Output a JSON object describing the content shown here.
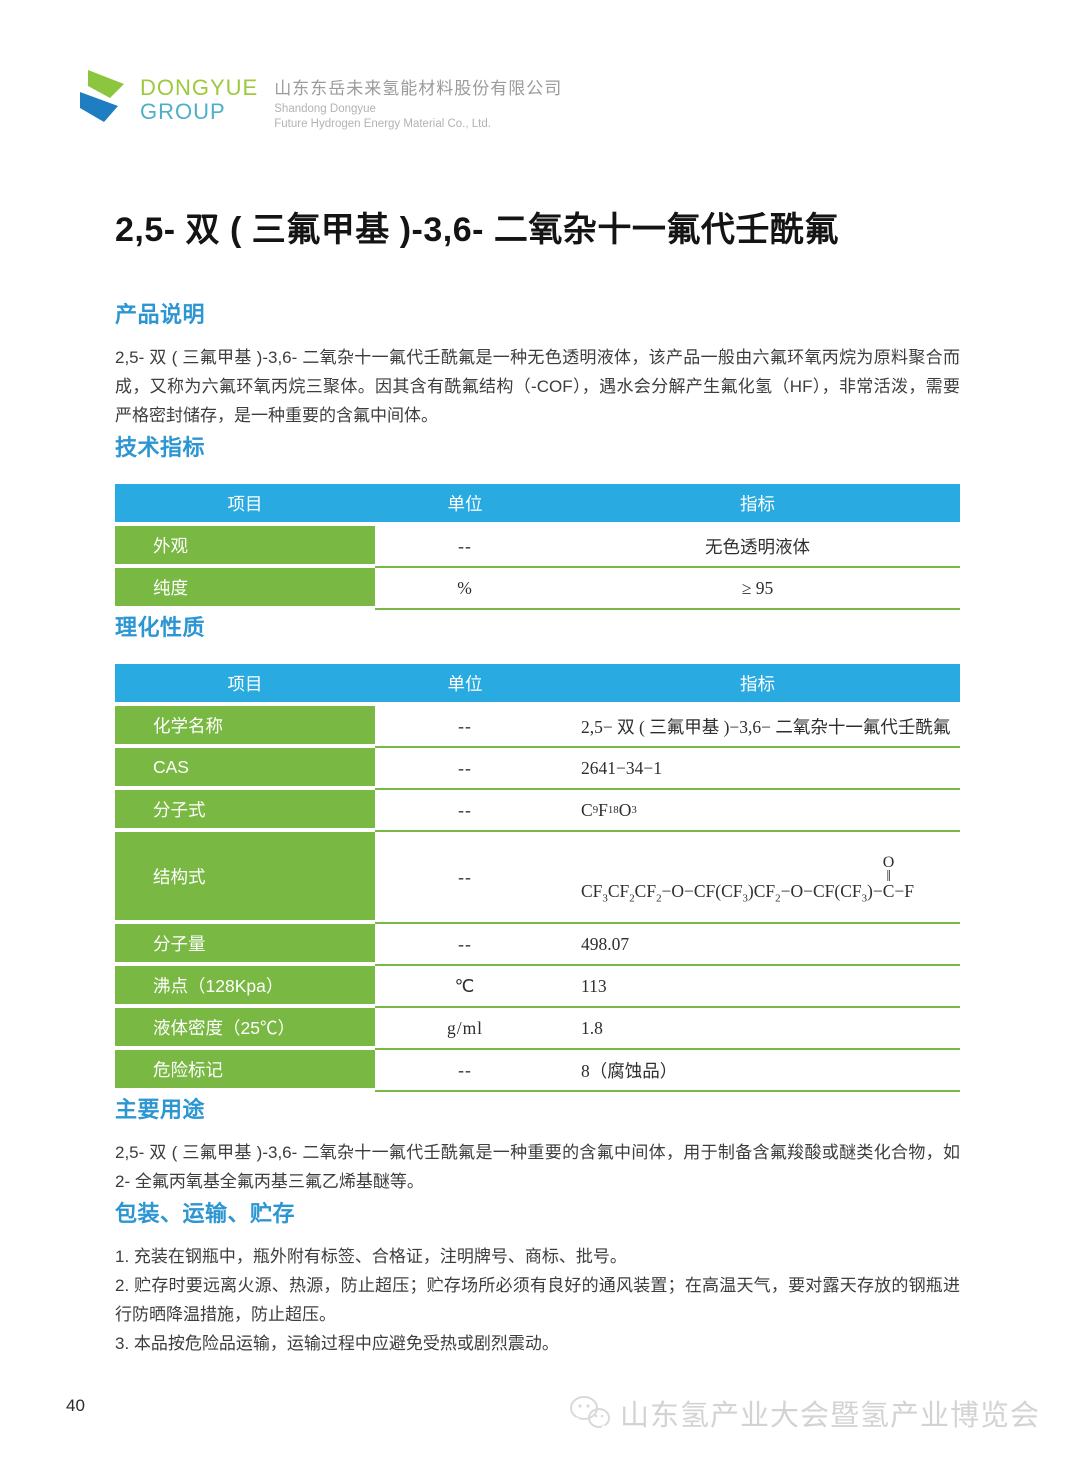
{
  "header": {
    "logo_word1": "DONGYUE",
    "logo_word2": "GROUP",
    "company_cn": "山东东岳未来氢能材料股份有限公司",
    "company_en1": "Shandong Dongyue",
    "company_en2": "Future Hydrogen Energy Material Co., Ltd."
  },
  "title": "2,5- 双 ( 三氟甲基 )-3,6- 二氧杂十一氟代壬酰氟",
  "sections": {
    "product_desc": {
      "heading": "产品说明",
      "body": "2,5- 双 ( 三氟甲基 )-3,6- 二氧杂十一氟代壬酰氟是一种无色透明液体，该产品一般由六氟环氧丙烷为原料聚合而成，又称为六氟环氧丙烷三聚体。因其含有酰氟结构（-COF），遇水会分解产生氟化氢（HF），非常活泼，需要严格密封储存，是一种重要的含氟中间体。"
    },
    "tech_spec": {
      "heading": "技术指标"
    },
    "phys_chem": {
      "heading": "理化性质"
    },
    "main_use": {
      "heading": "主要用途",
      "body": "2,5- 双 ( 三氟甲基 )-3,6- 二氧杂十一氟代壬酰氟是一种重要的含氟中间体，用于制备含氟羧酸或醚类化合物，如 2- 全氟丙氧基全氟丙基三氟乙烯基醚等。"
    },
    "packing": {
      "heading": "包装、运输、贮存",
      "items": [
        "1. 充装在钢瓶中，瓶外附有标签、合格证，注明牌号、商标、批号。",
        "2. 贮存时要远离火源、热源，防止超压；贮存场所必须有良好的通风装置；在高温天气，要对露天存放的钢瓶进行防晒降温措施，防止超压。",
        "3. 本品按危险品运输，运输过程中应避免受热或剧烈震动。"
      ]
    }
  },
  "tables": {
    "headers": [
      "项目",
      "单位",
      "指标"
    ],
    "tech": {
      "value_align": "center",
      "rows": [
        {
          "item": "外观",
          "unit": "--",
          "value": "无色透明液体"
        },
        {
          "item": "纯度",
          "unit": "%",
          "value": "≥ 95"
        }
      ]
    },
    "phys": {
      "value_align": "left",
      "rows": [
        {
          "item": "化学名称",
          "unit": "--",
          "value": "2,5− 双 ( 三氟甲基 )−3,6− 二氧杂十一氟代壬酰氟"
        },
        {
          "item": "CAS",
          "unit": "--",
          "value": "2641−34−1"
        },
        {
          "item": "分子式",
          "unit": "--",
          "value": "C~9~F~18~O~3~"
        },
        {
          "item": "结构式",
          "unit": "--",
          "tall": true,
          "formula": {
            "before": "CF~3~CF~2~CF~2~−O−CF(CF~3~)CF~2~−O−CF(CF~3~)−",
            "carbon": "C",
            "after": "−F",
            "top_atom": "O",
            "double_bond": "‖"
          }
        },
        {
          "item": "分子量",
          "unit": "--",
          "value": "498.07"
        },
        {
          "item": "沸点（128Kpa）",
          "unit": "℃",
          "value": "113"
        },
        {
          "item": "液体密度（25℃）",
          "unit": "g/ml",
          "value": "1.8"
        },
        {
          "item": "危险标记",
          "unit": "--",
          "value": "8（腐蚀品）"
        }
      ]
    }
  },
  "footer": {
    "page_number": "40",
    "watermark_text": "山东氢产业大会暨氢产业博览会"
  },
  "colors": {
    "table_header_blue": "#29ABE2",
    "table_green": "#79B843",
    "section_heading_blue": "#2C96D2",
    "logo_green": "#8CC63F",
    "logo_blue": "#1F7EC2"
  }
}
